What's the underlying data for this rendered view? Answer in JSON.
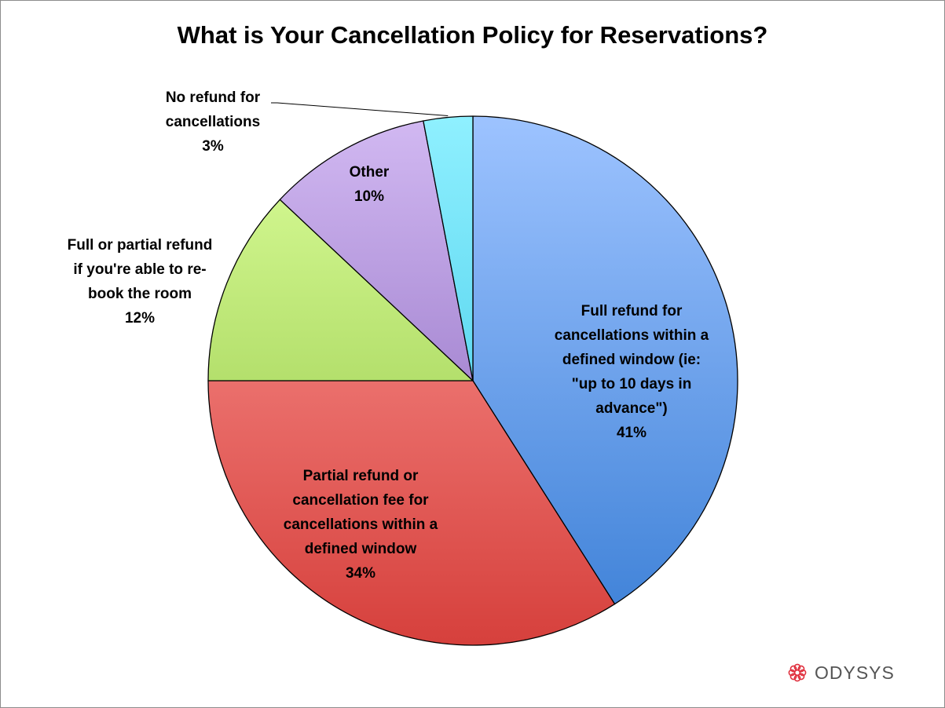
{
  "chart_data": {
    "type": "pie",
    "title": "What is Your Cancellation Policy for Reservations?",
    "start_angle_deg": 0,
    "direction": "clockwise",
    "slices": [
      {
        "label_lines": [
          "Full refund for",
          "cancellations within a",
          "defined window (ie:",
          "\"up to 10 days in",
          "advance\")"
        ],
        "percent_label": "41%",
        "value": 41,
        "color_top": "#9dc3ff",
        "color_bottom": "#3b7fd6"
      },
      {
        "label_lines": [
          "Partial refund or",
          "cancellation fee for",
          "cancellations within a",
          "defined window"
        ],
        "percent_label": "34%",
        "value": 34,
        "color_top": "#ff9f9c",
        "color_bottom": "#d6403c"
      },
      {
        "label_lines": [
          "Full or partial refund",
          "if you're able to re-",
          "book the room"
        ],
        "percent_label": "12%",
        "value": 12,
        "color_top": "#dcff9c",
        "color_bottom": "#8cc03c"
      },
      {
        "label_lines": [
          "Other"
        ],
        "percent_label": "10%",
        "value": 10,
        "color_top": "#d2b9f2",
        "color_bottom": "#7f5bb5"
      },
      {
        "label_lines": [
          "No refund for",
          "cancellations"
        ],
        "percent_label": "3%",
        "value": 3,
        "color_top": "#8ff0ff",
        "color_bottom": "#2ec0e2"
      }
    ]
  },
  "brand": {
    "name": "ODYSYS",
    "icon": "odysys-star-logo",
    "color": "#e0303e"
  }
}
